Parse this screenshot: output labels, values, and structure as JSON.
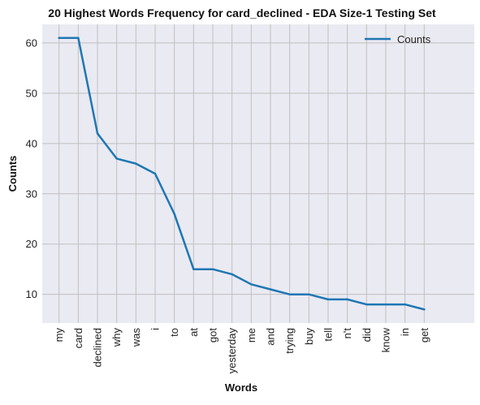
{
  "chart_data": {
    "type": "line",
    "title": "20 Highest Words Frequency for card_declined - EDA Size-1 Testing Set",
    "xlabel": "Words",
    "ylabel": "Counts",
    "categories": [
      "my",
      "card",
      "declined",
      "why",
      "was",
      "i",
      "to",
      "at",
      "got",
      "yesterday",
      "me",
      "and",
      "trying",
      "buy",
      "tell",
      "n't",
      "did",
      "know",
      "in",
      "get"
    ],
    "series": [
      {
        "name": "Counts",
        "color": "#1f77b4",
        "values": [
          61,
          61,
          42,
          37,
          36,
          34,
          26,
          15,
          15,
          14,
          12,
          11,
          10,
          10,
          9,
          9,
          8,
          8,
          8,
          7
        ]
      }
    ],
    "yticks": [
      10,
      20,
      30,
      40,
      50,
      60
    ],
    "ylim": [
      4.3,
      63.7
    ],
    "grid": true,
    "legend_position": "top-right",
    "background_color": "#eaeaf2",
    "grid_color": "#c0c0c0"
  }
}
